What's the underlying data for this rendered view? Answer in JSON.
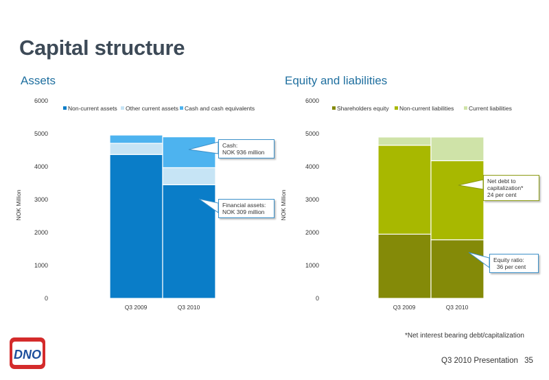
{
  "page": {
    "title": "Capital structure",
    "footnote": "*Net interest bearing debt/capitalization",
    "footer": "Q3 2010 Presentation",
    "page_number": "35",
    "logo_text": "DNO"
  },
  "colors": {
    "title": "#3d4a57",
    "section": "#1f6f9f",
    "non_current_assets": "#0a7dc8",
    "other_current_assets": "#c6e4f5",
    "cash": "#4db3ef",
    "shareholders_equity": "#848a08",
    "non_current_liabilities": "#a8b800",
    "current_liabilities": "#cfe3a8",
    "logo_red": "#d42b2b",
    "logo_blue": "#1d4f9c"
  },
  "chart_data": [
    {
      "type": "bar",
      "stacked": true,
      "title": "Assets",
      "ylabel": "NOK Million",
      "ylim": [
        0,
        6000
      ],
      "yticks": [
        0,
        1000,
        2000,
        3000,
        4000,
        5000,
        6000
      ],
      "categories": [
        "Q3 2009",
        "Q3 2010"
      ],
      "legend_position": "top",
      "series": [
        {
          "name": "Non-current assets",
          "values": [
            4370,
            3450
          ],
          "color": "#0a7dc8"
        },
        {
          "name": "Other current assets",
          "values": [
            340,
            520
          ],
          "color": "#c6e4f5"
        },
        {
          "name": "Cash and cash equivalents",
          "values": [
            250,
            936
          ],
          "color": "#4db3ef"
        }
      ],
      "annotations": [
        {
          "lines": [
            "Cash:",
            "NOK 936 million"
          ]
        },
        {
          "lines": [
            "Financial assets:",
            "NOK  309 million"
          ]
        }
      ]
    },
    {
      "type": "bar",
      "stacked": true,
      "title": "Equity and liabilities",
      "ylabel": "NOK Million",
      "ylim": [
        0,
        6000
      ],
      "yticks": [
        0,
        1000,
        2000,
        3000,
        4000,
        5000,
        6000
      ],
      "categories": [
        "Q3 2009",
        "Q3 2010"
      ],
      "legend_position": "top",
      "series": [
        {
          "name": "Shareholders equity",
          "values": [
            1950,
            1780
          ],
          "color": "#848a08"
        },
        {
          "name": "Non-current liabilities",
          "values": [
            2700,
            2400
          ],
          "color": "#a8b800"
        },
        {
          "name": "Current liabilities",
          "values": [
            250,
            720
          ],
          "color": "#cfe3a8"
        }
      ],
      "annotations": [
        {
          "lines": [
            "Net debt to",
            "capitalization*",
            "24 per cent"
          ]
        },
        {
          "lines": [
            "Equity ratio:",
            "  36 per cent"
          ]
        }
      ]
    }
  ]
}
